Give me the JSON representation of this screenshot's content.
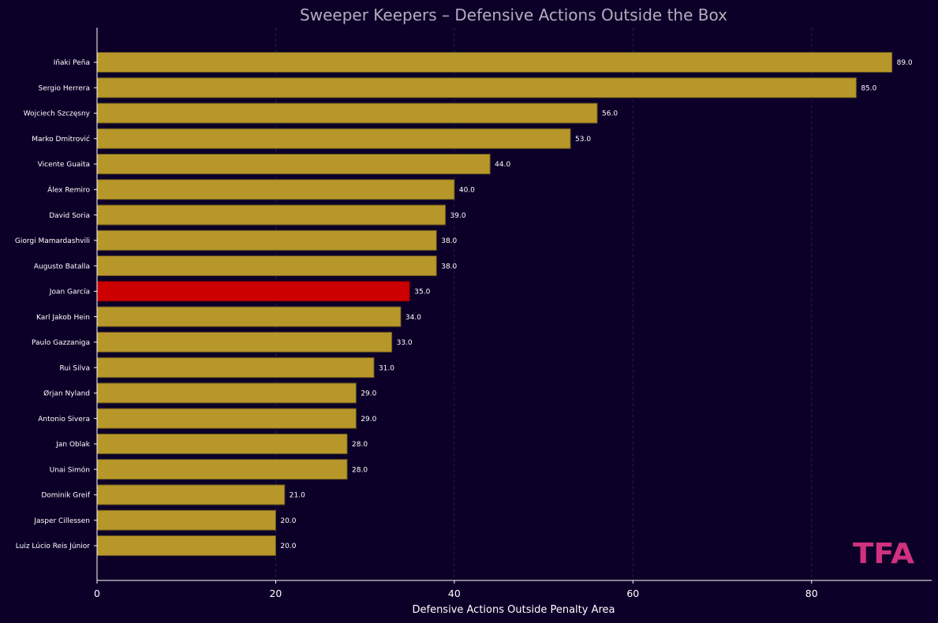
{
  "chart_data": {
    "type": "bar",
    "orientation": "horizontal",
    "title": "Sweeper Keepers – Defensive Actions Outside the Box",
    "xlabel": "Defensive Actions Outside Penalty Area",
    "ylabel": "",
    "xlim": [
      0,
      93.45
    ],
    "xticks": [
      0,
      20,
      40,
      60,
      80
    ],
    "grid": "x, dashed",
    "categories": [
      "Iñaki Peña",
      "Sergio Herrera",
      "Wojciech Szczęsny",
      "Marko Dmitrović",
      "Vicente Guaita",
      "Álex Remiro",
      "David Soria",
      "Giorgi Mamardashvili",
      "Augusto Batalla",
      "Joan García",
      "Karl Jakob Hein",
      "Paulo Gazzaniga",
      "Rui Silva",
      "Ørjan Nyland",
      "Antonio Sivera",
      "Jan Oblak",
      "Unai Simón",
      "Dominik Greif",
      "Jasper Cillessen",
      "Luiz Lúcio Reis Júnior"
    ],
    "values": [
      89,
      85,
      56,
      53,
      44,
      40,
      39,
      38,
      38,
      35,
      34,
      33,
      31,
      29,
      29,
      28,
      28,
      21,
      20,
      20
    ],
    "value_labels": [
      "89.0",
      "85.0",
      "56.0",
      "53.0",
      "44.0",
      "40.0",
      "39.0",
      "38.0",
      "38.0",
      "35.0",
      "34.0",
      "33.0",
      "31.0",
      "29.0",
      "29.0",
      "28.0",
      "28.0",
      "21.0",
      "20.0",
      "20.0"
    ],
    "highlight": "Joan García",
    "colors": {
      "bar": "#b8972a",
      "bar_edge": "#6e5c1e",
      "highlight": "#cc0000",
      "background": "#0c0028",
      "grid": "#2a2250",
      "axis": "#ffffff",
      "title": "#b3adbf",
      "logo": "#d0317f"
    }
  },
  "watermark": {
    "text": "TFA"
  }
}
